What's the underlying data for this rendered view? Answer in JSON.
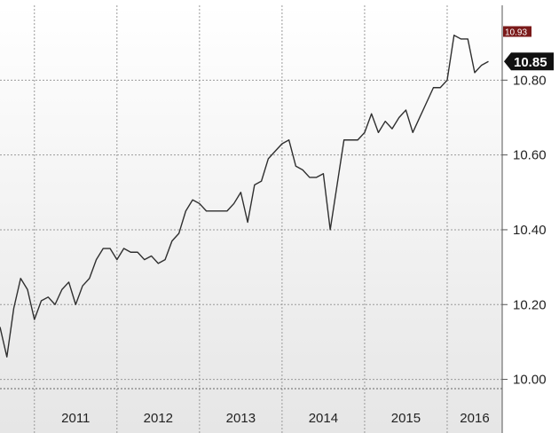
{
  "toolbar": {
    "chart_type_icon": "line-chart-icon",
    "dropdown_icon": "chevron-down-icon"
  },
  "chart_data": {
    "type": "line",
    "title": "",
    "xlabel": "",
    "ylabel": "",
    "ylim": [
      9.98,
      11.0
    ],
    "xlim": [
      "2010-08-01",
      "2016-09-01"
    ],
    "year_labels": [
      "2011",
      "2012",
      "2013",
      "2014",
      "2015",
      "2016"
    ],
    "y_ticks": [
      10.0,
      10.2,
      10.4,
      10.6,
      10.8
    ],
    "y_tick_labels": [
      "10.00",
      "10.20",
      "10.40",
      "10.60",
      "10.80"
    ],
    "last_value_label": "10.85",
    "high_value_label": "10.93",
    "grid": true,
    "axis_position": "right",
    "colors": {
      "line": "#2f2f2f",
      "grid": "#9a9a9a",
      "last_badge": "#111111",
      "high_badge": "#7a1a1a",
      "background_top": "#ffffff",
      "background_bottom": "#e6e6e6"
    },
    "series": [
      {
        "x": [
          "2010-08",
          "2010-09",
          "2010-10",
          "2010-11",
          "2010-12",
          "2011-01",
          "2011-02",
          "2011-03",
          "2011-04",
          "2011-05",
          "2011-06",
          "2011-07",
          "2011-08",
          "2011-09",
          "2011-10",
          "2011-11",
          "2011-12",
          "2012-01",
          "2012-02",
          "2012-03",
          "2012-04",
          "2012-05",
          "2012-06",
          "2012-07",
          "2012-08",
          "2012-09",
          "2012-10",
          "2012-11",
          "2012-12",
          "2013-01",
          "2013-02",
          "2013-03",
          "2013-04",
          "2013-05",
          "2013-06",
          "2013-07",
          "2013-08",
          "2013-09",
          "2013-10",
          "2013-11",
          "2013-12",
          "2014-01",
          "2014-02",
          "2014-03",
          "2014-04",
          "2014-05",
          "2014-06",
          "2014-07",
          "2014-08",
          "2014-09",
          "2014-10",
          "2014-11",
          "2014-12",
          "2015-01",
          "2015-02",
          "2015-03",
          "2015-04",
          "2015-05",
          "2015-06",
          "2015-07",
          "2015-08",
          "2015-09",
          "2015-10",
          "2015-11",
          "2015-12",
          "2016-01",
          "2016-02",
          "2016-03",
          "2016-04",
          "2016-05",
          "2016-06",
          "2016-07"
        ],
        "values": [
          10.14,
          10.06,
          10.19,
          10.27,
          10.24,
          10.16,
          10.21,
          10.22,
          10.2,
          10.24,
          10.26,
          10.2,
          10.25,
          10.27,
          10.32,
          10.35,
          10.35,
          10.32,
          10.35,
          10.34,
          10.34,
          10.32,
          10.33,
          10.31,
          10.32,
          10.37,
          10.39,
          10.45,
          10.48,
          10.47,
          10.45,
          10.45,
          10.45,
          10.45,
          10.47,
          10.5,
          10.42,
          10.52,
          10.53,
          10.59,
          10.61,
          10.63,
          10.64,
          10.57,
          10.56,
          10.54,
          10.54,
          10.55,
          10.4,
          10.52,
          10.64,
          10.64,
          10.64,
          10.66,
          10.71,
          10.66,
          10.69,
          10.67,
          10.7,
          10.72,
          10.66,
          10.7,
          10.74,
          10.78,
          10.78,
          10.8,
          10.92,
          10.91,
          10.91,
          10.82,
          10.84,
          10.85
        ]
      }
    ]
  }
}
